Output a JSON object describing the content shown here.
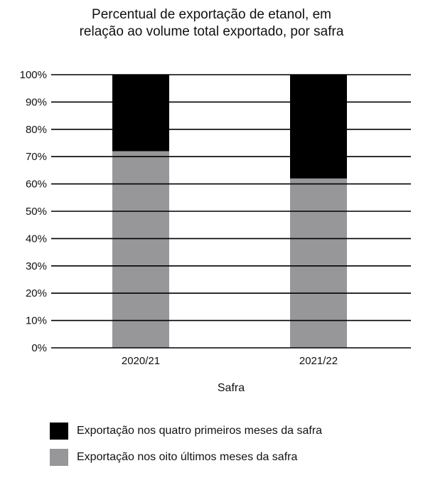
{
  "chart_data": {
    "type": "bar",
    "stacked": true,
    "title_lines": [
      "Percentual de exportação de etanol, em",
      "relação ao volume total exportado, por safra"
    ],
    "xlabel": "Safra",
    "ylabel": "",
    "categories": [
      "2020/21",
      "2021/22"
    ],
    "ylim": [
      0,
      100
    ],
    "yticks": [
      0,
      10,
      20,
      30,
      40,
      50,
      60,
      70,
      80,
      90,
      100
    ],
    "ytick_labels": [
      "0%",
      "10%",
      "20%",
      "30%",
      "40%",
      "50%",
      "60%",
      "70%",
      "80%",
      "90%",
      "100%"
    ],
    "grid": true,
    "legend_position": "bottom-left",
    "series": [
      {
        "name": "Exportação nos oito últimos meses da safra",
        "values": [
          72,
          62
        ],
        "color": "#97979a"
      },
      {
        "name": "Exportação nos quatro primeiros meses da safra",
        "values": [
          28,
          38
        ],
        "color": "#000000"
      }
    ],
    "legend_order": [
      1,
      0
    ]
  }
}
